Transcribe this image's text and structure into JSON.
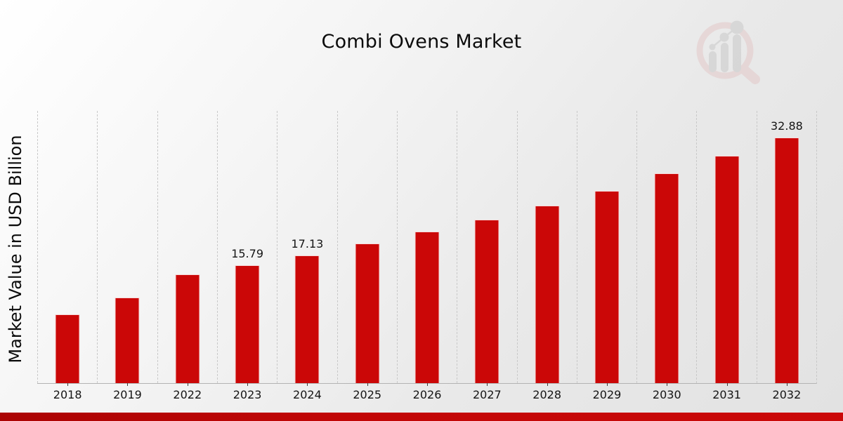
{
  "title": "Combi Ovens Market",
  "y_axis_label": "Market Value in USD Billion",
  "watermark_icon": "magnifier-with-bar-trend-logo",
  "colors": {
    "bar": "#cb0707",
    "bottom_band": "#c10606",
    "gridline": "#c9c9c9",
    "axis_line": "#b3b3b3",
    "background_start": "#ffffff",
    "background_end": "#e2e2e2",
    "text": "#111111",
    "watermark_ring": "#e3c6c6",
    "watermark_bars": "#c6c6c6"
  },
  "chart_data": {
    "type": "bar",
    "title": "Combi Ovens Market",
    "xlabel": "",
    "ylabel": "Market Value in USD Billion",
    "categories": [
      "2018",
      "2019",
      "2022",
      "2023",
      "2024",
      "2025",
      "2026",
      "2027",
      "2028",
      "2029",
      "2030",
      "2031",
      "2032"
    ],
    "values": [
      9.2,
      11.45,
      14.55,
      15.79,
      17.13,
      18.7,
      20.3,
      21.9,
      23.8,
      25.8,
      28.1,
      30.45,
      32.88
    ],
    "data_labels": [
      "",
      "",
      "",
      "15.79",
      "17.13",
      "",
      "",
      "",
      "",
      "",
      "",
      "",
      "32.88"
    ],
    "ylim": [
      0,
      36.5
    ],
    "y_ticks_shown": false,
    "grid": "vertical dashed lines between categories",
    "legend": "none",
    "bar_color": "#cb0707"
  }
}
